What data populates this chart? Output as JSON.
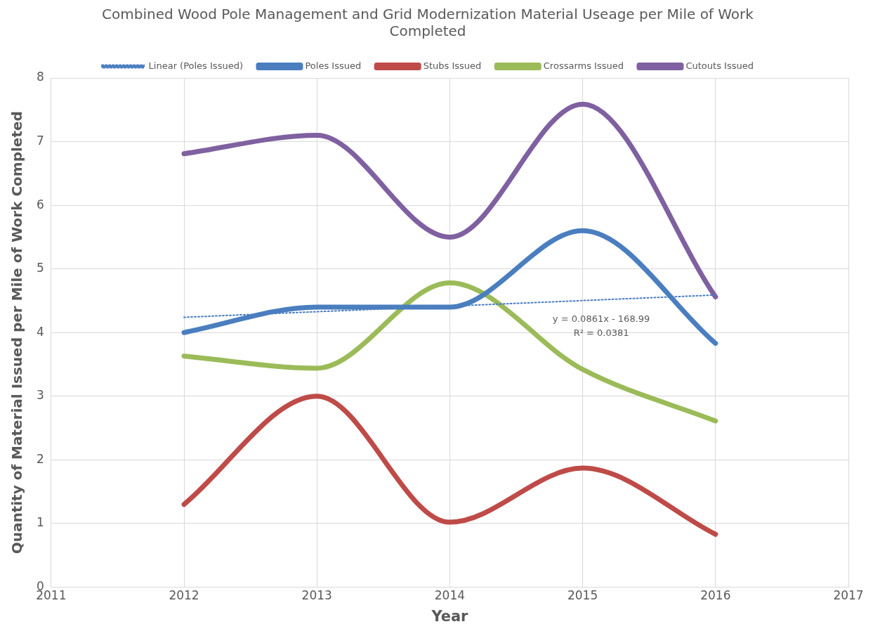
{
  "chart_data": {
    "type": "line",
    "title": "Combined Wood Pole Management and Grid Modernization Material Useage per Mile of Work Completed",
    "xlabel": "Year",
    "ylabel": "Quantity of Material Issued per Mile of Work Completed",
    "x": [
      2012,
      2013,
      2014,
      2015,
      2016
    ],
    "series": [
      {
        "name": "Poles Issued",
        "color": "#4a7ebf",
        "values": [
          4.0,
          4.4,
          4.4,
          5.6,
          3.83
        ]
      },
      {
        "name": "Stubs Issued",
        "color": "#be4b48",
        "values": [
          1.3,
          3.0,
          1.02,
          1.87,
          0.83
        ]
      },
      {
        "name": "Crossarms Issued",
        "color": "#9bbb59",
        "values": [
          3.63,
          3.44,
          4.78,
          3.42,
          2.61
        ]
      },
      {
        "name": "Cutouts Issued",
        "color": "#7f60a0",
        "values": [
          6.81,
          7.1,
          5.5,
          7.59,
          4.56
        ]
      },
      {
        "name": "Linear (Poles Issued)",
        "color": "#4a7ebf",
        "line_style": "dotted",
        "x": [
          2012,
          2016
        ],
        "values": [
          4.24,
          4.59
        ]
      }
    ],
    "annotations": [
      "y = 0.0861x - 168.99",
      "R² = 0.0381"
    ],
    "xlim": [
      2011,
      2017
    ],
    "xticks": [
      2011,
      2012,
      2013,
      2014,
      2015,
      2016,
      2017
    ],
    "ylim": [
      0,
      8
    ],
    "yticks": [
      0,
      1,
      2,
      3,
      4,
      5,
      6,
      7,
      8
    ],
    "grid": true,
    "legend": "top",
    "marker": "none",
    "line_style": "solid"
  }
}
